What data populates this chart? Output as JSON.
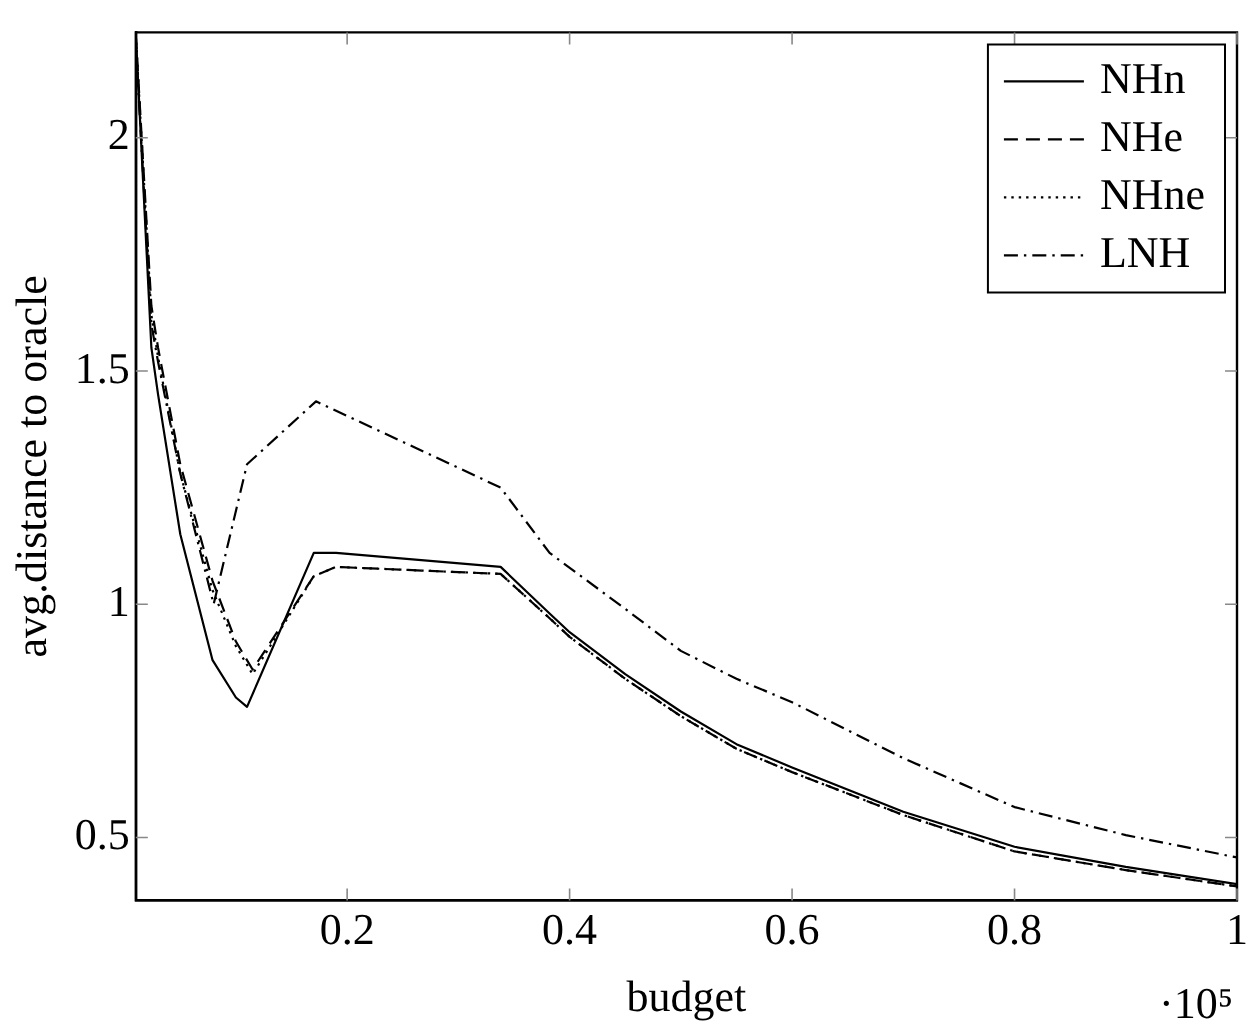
{
  "chart_data": {
    "type": "line",
    "xlabel": "budget",
    "ylabel": "avg.distance to oracle",
    "annotations": [
      "·10⁵"
    ],
    "xlim": [
      0.01,
      1
    ],
    "xticks": [
      0.2,
      0.4,
      0.6,
      0.8,
      1
    ],
    "ylim": [
      0.365,
      2.226
    ],
    "yticks": [
      0.5,
      1,
      1.5,
      2
    ],
    "grid": false,
    "legend": "top right",
    "marker": "none",
    "series": [
      {
        "name": "NHn",
        "color": "#000000",
        "line_style": "solid",
        "x": [
          0.01,
          0.024,
          0.03,
          0.05,
          0.079,
          0.1,
          0.11,
          0.17,
          0.19,
          0.338,
          0.382,
          0.4,
          0.45,
          0.5,
          0.55,
          0.6,
          0.7,
          0.8,
          0.9,
          1
        ],
        "values": [
          2.22,
          1.55,
          1.45,
          1.15,
          0.88,
          0.8,
          0.78,
          1.11,
          1.11,
          1.08,
          0.98,
          0.94,
          0.85,
          0.77,
          0.7,
          0.65,
          0.555,
          0.48,
          0.437,
          0.4
        ]
      },
      {
        "name": "NHe",
        "color": "#000000",
        "line_style": "dashed",
        "x": [
          0.01,
          0.024,
          0.03,
          0.05,
          0.079,
          0.1,
          0.115,
          0.17,
          0.19,
          0.338,
          0.382,
          0.4,
          0.45,
          0.5,
          0.55,
          0.6,
          0.7,
          0.8,
          0.9,
          1
        ],
        "values": [
          2.22,
          1.64,
          1.55,
          1.3,
          1.05,
          0.92,
          0.86,
          1.06,
          1.08,
          1.065,
          0.97,
          0.93,
          0.84,
          0.76,
          0.69,
          0.64,
          0.548,
          0.47,
          0.43,
          0.395
        ]
      },
      {
        "name": "NHne",
        "color": "#000000",
        "line_style": "dotted",
        "x": [
          0.01,
          0.024,
          0.03,
          0.05,
          0.079,
          0.1,
          0.115,
          0.17,
          0.19,
          0.338,
          0.382,
          0.4,
          0.45,
          0.5,
          0.55,
          0.6,
          0.7,
          0.8,
          0.9,
          1
        ],
        "values": [
          2.22,
          1.62,
          1.53,
          1.28,
          1.03,
          0.91,
          0.85,
          1.06,
          1.08,
          1.065,
          0.97,
          0.93,
          0.84,
          0.76,
          0.69,
          0.64,
          0.548,
          0.47,
          0.43,
          0.395
        ]
      },
      {
        "name": "LNH",
        "color": "#000000",
        "line_style": "dashdot",
        "x": [
          0.01,
          0.024,
          0.03,
          0.05,
          0.08,
          0.11,
          0.172,
          0.338,
          0.382,
          0.45,
          0.5,
          0.55,
          0.6,
          0.7,
          0.8,
          0.9,
          1
        ],
        "values": [
          2.2,
          1.6,
          1.52,
          1.28,
          1.0,
          1.3,
          1.435,
          1.25,
          1.11,
          0.99,
          0.9,
          0.84,
          0.79,
          0.67,
          0.565,
          0.505,
          0.457
        ]
      }
    ]
  }
}
